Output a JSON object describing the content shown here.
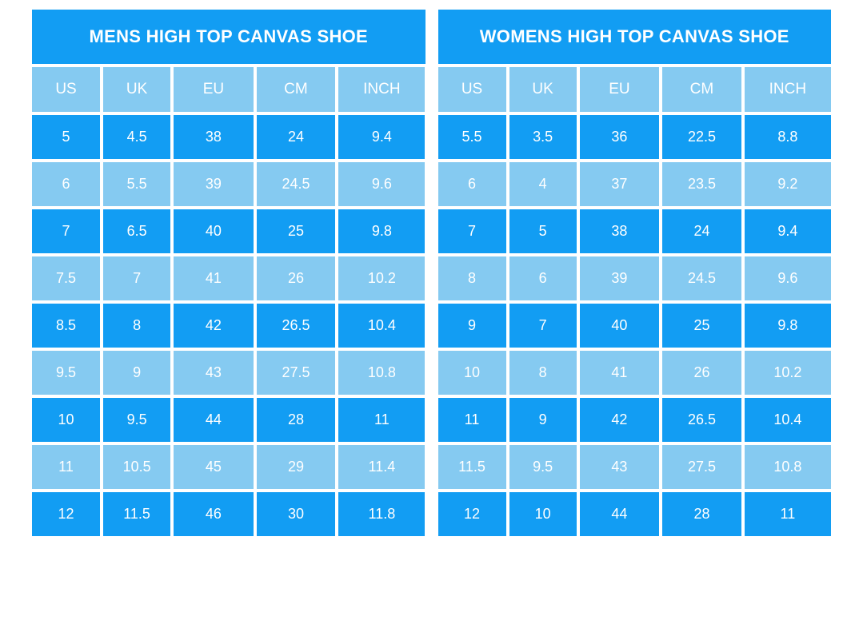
{
  "colors": {
    "primary": "#129DF3",
    "light": "#85CAF1",
    "text": "#FFFFFF",
    "background": "#FFFFFF"
  },
  "chart_data": [
    {
      "type": "table",
      "title": "MENS HIGH TOP CANVAS SHOE",
      "columns": [
        "US",
        "UK",
        "EU",
        "CM",
        "INCH"
      ],
      "rows": [
        [
          "5",
          "4.5",
          "38",
          "24",
          "9.4"
        ],
        [
          "6",
          "5.5",
          "39",
          "24.5",
          "9.6"
        ],
        [
          "7",
          "6.5",
          "40",
          "25",
          "9.8"
        ],
        [
          "7.5",
          "7",
          "41",
          "26",
          "10.2"
        ],
        [
          "8.5",
          "8",
          "42",
          "26.5",
          "10.4"
        ],
        [
          "9.5",
          "9",
          "43",
          "27.5",
          "10.8"
        ],
        [
          "10",
          "9.5",
          "44",
          "28",
          "11"
        ],
        [
          "11",
          "10.5",
          "45",
          "29",
          "11.4"
        ],
        [
          "12",
          "11.5",
          "46",
          "30",
          "11.8"
        ]
      ]
    },
    {
      "type": "table",
      "title": "WOMENS HIGH TOP CANVAS SHOE",
      "columns": [
        "US",
        "UK",
        "EU",
        "CM",
        "INCH"
      ],
      "rows": [
        [
          "5.5",
          "3.5",
          "36",
          "22.5",
          "8.8"
        ],
        [
          "6",
          "4",
          "37",
          "23.5",
          "9.2"
        ],
        [
          "7",
          "5",
          "38",
          "24",
          "9.4"
        ],
        [
          "8",
          "6",
          "39",
          "24.5",
          "9.6"
        ],
        [
          "9",
          "7",
          "40",
          "25",
          "9.8"
        ],
        [
          "10",
          "8",
          "41",
          "26",
          "10.2"
        ],
        [
          "11",
          "9",
          "42",
          "26.5",
          "10.4"
        ],
        [
          "11.5",
          "9.5",
          "43",
          "27.5",
          "10.8"
        ],
        [
          "12",
          "10",
          "44",
          "28",
          "11"
        ]
      ]
    }
  ]
}
